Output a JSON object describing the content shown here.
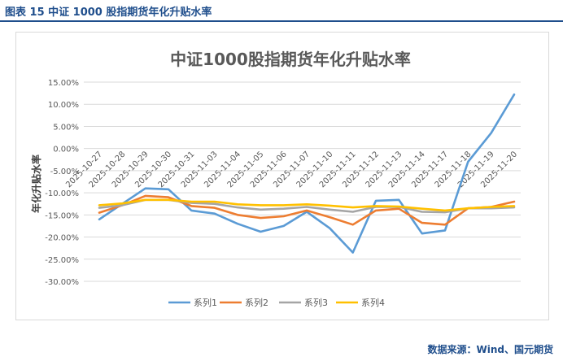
{
  "header": {
    "title": "图表 15  中证 1000 股指期货年化升贴水率"
  },
  "footer": {
    "source": "数据来源：Wind、国元期货"
  },
  "colors": {
    "accent": "#1f4e8c"
  },
  "chart_data": {
    "type": "line",
    "title": "中证1000股指期货年化升贴水率",
    "ylabel": "年化升贴水率",
    "xlabel": "",
    "ylim": [
      -30,
      15
    ],
    "ytick_step": 5,
    "y_tick_format": "percent_2dp",
    "grid": "horizontal",
    "legend": "bottom",
    "categories": [
      "2025-10-27",
      "2025-10-28",
      "2025-10-29",
      "2025-10-30",
      "2025-10-31",
      "2025-11-03",
      "2025-11-04",
      "2025-11-05",
      "2025-11-06",
      "2025-11-07",
      "2025-11-10",
      "2025-11-11",
      "2025-11-12",
      "2025-11-13",
      "2025-11-14",
      "2025-11-17",
      "2025-11-18",
      "2025-11-19",
      "2025-11-20"
    ],
    "series": [
      {
        "name": "系列1",
        "color": "#5b9bd5",
        "values": [
          -16.0,
          -12.5,
          -9.0,
          -9.2,
          -14.0,
          -14.7,
          -17.0,
          -18.8,
          -17.5,
          -14.3,
          -18.0,
          -23.5,
          -11.8,
          -11.6,
          -19.2,
          -18.5,
          -3.0,
          3.5,
          12.2
        ]
      },
      {
        "name": "系列2",
        "color": "#ed7d31",
        "values": [
          -14.5,
          -12.8,
          -10.7,
          -11.0,
          -13.0,
          -13.4,
          -15.0,
          -15.7,
          -15.3,
          -14.0,
          -15.5,
          -17.2,
          -14.0,
          -13.6,
          -16.8,
          -17.2,
          -13.5,
          -13.2,
          -12.0
        ]
      },
      {
        "name": "系列3",
        "color": "#a5a5a5",
        "values": [
          -13.4,
          -12.8,
          -11.6,
          -11.6,
          -12.3,
          -12.5,
          -13.3,
          -13.8,
          -13.6,
          -13.2,
          -13.8,
          -14.3,
          -13.2,
          -13.2,
          -14.3,
          -14.4,
          -13.5,
          -13.5,
          -13.3
        ]
      },
      {
        "name": "系列4",
        "color": "#ffc000",
        "values": [
          -12.8,
          -12.4,
          -11.6,
          -11.6,
          -12.0,
          -12.0,
          -12.6,
          -12.8,
          -12.8,
          -12.6,
          -12.9,
          -13.3,
          -13.0,
          -13.1,
          -13.6,
          -14.0,
          -13.5,
          -13.2,
          -13.0
        ]
      }
    ]
  }
}
